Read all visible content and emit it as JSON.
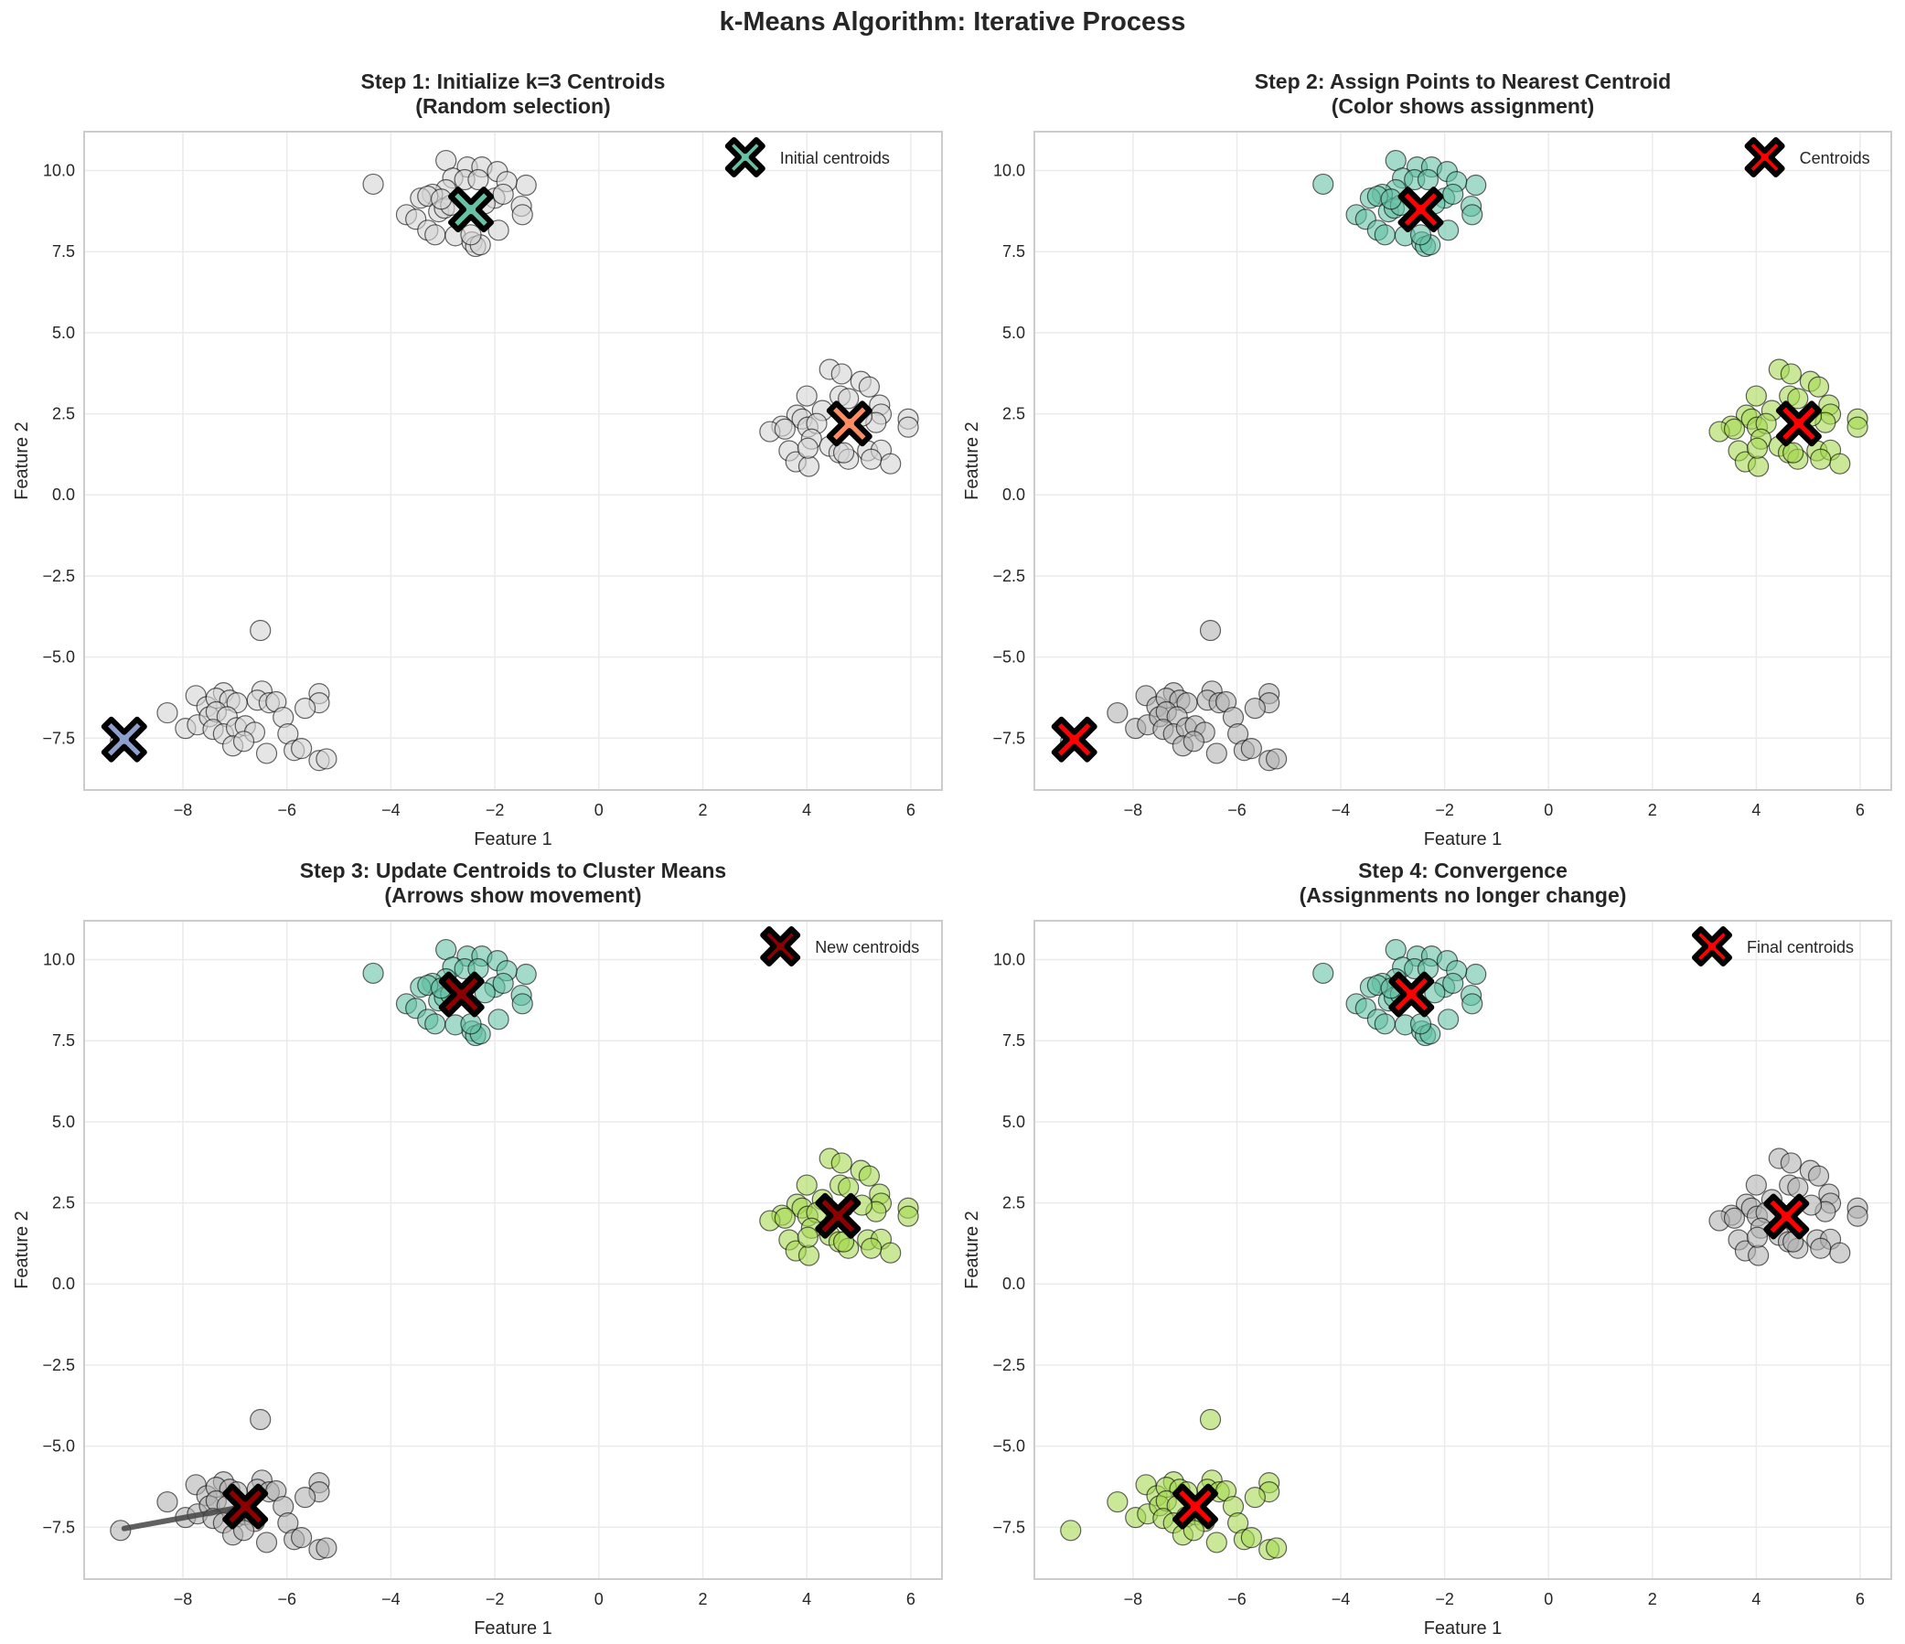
{
  "figure": {
    "suptitle": "k-Means Algorithm: Iterative Process"
  },
  "chart_data": [
    {
      "type": "scatter",
      "title": "Step 1: Initialize k=3 Centroids",
      "subtitle": "(Random selection)",
      "xlabel": "Feature 1",
      "ylabel": "Feature 2",
      "xlim": [
        -9.9,
        6.6
      ],
      "ylim": [
        -9.1,
        11.2
      ],
      "xticks": [
        -8,
        -6,
        -4,
        -2,
        0,
        2,
        4,
        6
      ],
      "yticks": [
        -7.5,
        -5.0,
        -2.5,
        0.0,
        2.5,
        5.0,
        7.5,
        10.0
      ],
      "grid": true,
      "legend": {
        "label": "Initial centroids",
        "placement": "top-right",
        "marker_color": "#66c2a5"
      },
      "point_colors": {
        "A": "#d3d3d3",
        "B": "#d3d3d3",
        "C": "#d3d3d3"
      },
      "centroids": [
        {
          "x": -2.46,
          "y": 8.8,
          "color": "#66c2a5"
        },
        {
          "x": 4.82,
          "y": 2.2,
          "color": "#fc8d62"
        },
        {
          "x": -9.13,
          "y": -7.54,
          "color": "#8da0cb"
        }
      ],
      "arrows": []
    },
    {
      "type": "scatter",
      "title": "Step 2: Assign Points to Nearest Centroid",
      "subtitle": "(Color shows assignment)",
      "xlabel": "Feature 1",
      "ylabel": "Feature 2",
      "xlim": [
        -9.9,
        6.6
      ],
      "ylim": [
        -9.1,
        11.2
      ],
      "xticks": [
        -8,
        -6,
        -4,
        -2,
        0,
        2,
        4,
        6
      ],
      "yticks": [
        -7.5,
        -5.0,
        -2.5,
        0.0,
        2.5,
        5.0,
        7.5,
        10.0
      ],
      "grid": true,
      "legend": {
        "label": "Centroids",
        "placement": "top-right",
        "marker_color": "#ff0000"
      },
      "point_colors": {
        "A": "#66c2a5",
        "B": "#a6d854",
        "C": "#b3b3b3"
      },
      "centroids": [
        {
          "x": -2.46,
          "y": 8.8,
          "color": "#ff0000"
        },
        {
          "x": 4.82,
          "y": 2.2,
          "color": "#ff0000"
        },
        {
          "x": -9.13,
          "y": -7.54,
          "color": "#ff0000"
        }
      ],
      "arrows": []
    },
    {
      "type": "scatter",
      "title": "Step 3: Update Centroids to Cluster Means",
      "subtitle": "(Arrows show movement)",
      "xlabel": "Feature 1",
      "ylabel": "Feature 2",
      "xlim": [
        -9.9,
        6.6
      ],
      "ylim": [
        -9.1,
        11.2
      ],
      "xticks": [
        -8,
        -6,
        -4,
        -2,
        0,
        2,
        4,
        6
      ],
      "yticks": [
        -7.5,
        -5.0,
        -2.5,
        0.0,
        2.5,
        5.0,
        7.5,
        10.0
      ],
      "grid": true,
      "legend": {
        "label": "New centroids",
        "placement": "top-right",
        "marker_color": "#8b0000"
      },
      "point_colors": {
        "A": "#66c2a5",
        "B": "#a6d854",
        "C": "#b3b3b3"
      },
      "centroids": [
        {
          "x": -2.64,
          "y": 8.93,
          "color": "#8b0000"
        },
        {
          "x": 4.6,
          "y": 2.1,
          "color": "#8b0000"
        },
        {
          "x": -6.8,
          "y": -6.86,
          "color": "#8b0000"
        }
      ],
      "arrows": [
        {
          "from": [
            -2.46,
            8.8
          ],
          "to": [
            -2.64,
            8.93
          ]
        },
        {
          "from": [
            4.82,
            2.2
          ],
          "to": [
            4.6,
            2.1
          ]
        },
        {
          "from": [
            -9.13,
            -7.54
          ],
          "to": [
            -6.8,
            -6.86
          ]
        }
      ]
    },
    {
      "type": "scatter",
      "title": "Step 4: Convergence",
      "subtitle": "(Assignments no longer change)",
      "xlabel": "Feature 1",
      "ylabel": "Feature 2",
      "xlim": [
        -9.9,
        6.6
      ],
      "ylim": [
        -9.1,
        11.2
      ],
      "xticks": [
        -8,
        -6,
        -4,
        -2,
        0,
        2,
        4,
        6
      ],
      "yticks": [
        -7.5,
        -5.0,
        -2.5,
        0.0,
        2.5,
        5.0,
        7.5,
        10.0
      ],
      "grid": true,
      "legend": {
        "label": "Final centroids",
        "placement": "top-right",
        "marker_color": "#ff0000"
      },
      "point_colors": {
        "A": "#66c2a5",
        "B": "#b3b3b3",
        "C": "#a6d854"
      },
      "centroids": [
        {
          "x": -2.64,
          "y": 8.93,
          "color": "#ff0000"
        },
        {
          "x": 4.58,
          "y": 2.08,
          "color": "#ff0000"
        },
        {
          "x": -6.8,
          "y": -6.86,
          "color": "#ff0000"
        }
      ],
      "arrows": []
    }
  ],
  "points": {
    "A": [
      [
        -4.34,
        9.58
      ],
      [
        -2.94,
        10.31
      ],
      [
        -2.53,
        10.11
      ],
      [
        -2.25,
        10.11
      ],
      [
        -1.95,
        9.97
      ],
      [
        -1.4,
        9.55
      ],
      [
        -1.77,
        9.66
      ],
      [
        -2.81,
        9.77
      ],
      [
        -2.58,
        9.72
      ],
      [
        -2.32,
        9.72
      ],
      [
        -2.94,
        9.41
      ],
      [
        -3.2,
        9.27
      ],
      [
        -3.43,
        9.15
      ],
      [
        -3.29,
        9.21
      ],
      [
        -2.0,
        9.15
      ],
      [
        -1.84,
        9.27
      ],
      [
        -1.49,
        8.9
      ],
      [
        -1.47,
        8.64
      ],
      [
        -3.7,
        8.64
      ],
      [
        -3.52,
        8.5
      ],
      [
        -3.08,
        8.73
      ],
      [
        -2.97,
        8.84
      ],
      [
        -2.85,
        8.93
      ],
      [
        -3.29,
        8.16
      ],
      [
        -3.15,
        8.02
      ],
      [
        -2.76,
        7.99
      ],
      [
        -1.93,
        8.16
      ],
      [
        -2.44,
        7.8
      ],
      [
        -2.37,
        7.66
      ],
      [
        -2.28,
        7.71
      ],
      [
        -2.46,
        8.02
      ],
      [
        -2.19,
        8.98
      ],
      [
        -3.03,
        9.12
      ]
    ],
    "B": [
      [
        4.44,
        3.87
      ],
      [
        4.67,
        3.73
      ],
      [
        5.04,
        3.5
      ],
      [
        5.2,
        3.33
      ],
      [
        4.0,
        3.05
      ],
      [
        4.64,
        3.05
      ],
      [
        4.8,
        2.97
      ],
      [
        5.4,
        2.77
      ],
      [
        5.43,
        2.49
      ],
      [
        5.95,
        2.34
      ],
      [
        5.95,
        2.09
      ],
      [
        4.3,
        2.6
      ],
      [
        3.81,
        2.46
      ],
      [
        3.91,
        2.34
      ],
      [
        3.52,
        2.12
      ],
      [
        3.29,
        1.95
      ],
      [
        3.58,
        2.03
      ],
      [
        4.02,
        2.09
      ],
      [
        4.19,
        2.2
      ],
      [
        5.33,
        2.23
      ],
      [
        5.06,
        2.43
      ],
      [
        4.09,
        1.72
      ],
      [
        4.44,
        1.5
      ],
      [
        3.66,
        1.36
      ],
      [
        3.79,
        1.02
      ],
      [
        4.04,
        0.88
      ],
      [
        4.02,
        1.44
      ],
      [
        4.62,
        1.3
      ],
      [
        4.8,
        1.1
      ],
      [
        5.17,
        1.36
      ],
      [
        5.43,
        1.38
      ],
      [
        5.61,
        0.96
      ],
      [
        5.24,
        1.1
      ],
      [
        4.71,
        1.3
      ]
    ],
    "C": [
      [
        -6.51,
        -4.18
      ],
      [
        -7.75,
        -6.19
      ],
      [
        -7.22,
        -6.1
      ],
      [
        -6.48,
        -6.05
      ],
      [
        -5.38,
        -6.13
      ],
      [
        -5.38,
        -6.41
      ],
      [
        -5.65,
        -6.58
      ],
      [
        -7.54,
        -6.53
      ],
      [
        -7.36,
        -6.27
      ],
      [
        -7.1,
        -6.33
      ],
      [
        -6.96,
        -6.41
      ],
      [
        -6.57,
        -6.33
      ],
      [
        -6.34,
        -6.41
      ],
      [
        -6.21,
        -6.38
      ],
      [
        -6.07,
        -6.86
      ],
      [
        -8.3,
        -6.72
      ],
      [
        -7.95,
        -7.2
      ],
      [
        -7.72,
        -7.09
      ],
      [
        -7.49,
        -6.84
      ],
      [
        -7.36,
        -6.69
      ],
      [
        -7.15,
        -6.84
      ],
      [
        -7.42,
        -7.23
      ],
      [
        -7.22,
        -7.37
      ],
      [
        -6.97,
        -7.18
      ],
      [
        -6.8,
        -7.12
      ],
      [
        -6.62,
        -7.32
      ],
      [
        -7.04,
        -7.74
      ],
      [
        -6.83,
        -7.6
      ],
      [
        -6.39,
        -7.97
      ],
      [
        -5.98,
        -7.37
      ],
      [
        -5.86,
        -7.88
      ],
      [
        -5.72,
        -7.82
      ],
      [
        -5.38,
        -8.19
      ],
      [
        -5.24,
        -8.14
      ],
      [
        -9.2,
        -7.6
      ]
    ]
  }
}
